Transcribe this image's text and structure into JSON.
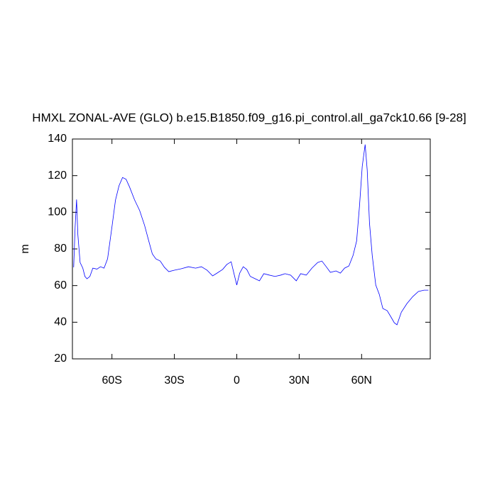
{
  "chart_data": {
    "type": "line",
    "title": "HMXL ZONAL-AVE (GLO) b.e15.B1850.f09_g16.pi_control.all_ga7ck10.66 [9-28]",
    "ylabel": "m",
    "color": "#0000ff",
    "x": [
      -78.4,
      -77.7,
      -77,
      -76.4,
      -75.3,
      -74,
      -73,
      -72,
      -70.6,
      -69.2,
      -67.2,
      -65.5,
      -63.8,
      -62.1,
      -60,
      -58.3,
      -56.6,
      -54.9,
      -53.2,
      -51.5,
      -49.1,
      -46.7,
      -44.3,
      -42.3,
      -40.6,
      -38.9,
      -36.8,
      -34.8,
      -32.7,
      -30,
      -26.6,
      -23.2,
      -19.8,
      -17,
      -14.3,
      -11.6,
      -9.5,
      -6.8,
      -4.8,
      -2.7,
      -1.4,
      0,
      1.4,
      3.1,
      4.8,
      6.5,
      8.9,
      10.9,
      13,
      15.7,
      18.4,
      21.1,
      23.2,
      25.9,
      28.6,
      30.7,
      33.4,
      36.1,
      38.9,
      40.9,
      43,
      45,
      47.7,
      49.8,
      51.8,
      53.9,
      55.9,
      57.6,
      59,
      60.3,
      61.7,
      62.7,
      63.8,
      65.1,
      66.8,
      68.5,
      70.2,
      72.3,
      74.3,
      75.7,
      77,
      79.1,
      81.8,
      84.6,
      87.3,
      90,
      92.1
    ],
    "values": [
      70,
      92,
      107,
      88,
      72.6,
      69.5,
      65,
      63.7,
      65,
      69.5,
      69,
      70.3,
      69.5,
      74.6,
      92,
      106.7,
      114.5,
      119,
      118,
      113.7,
      106.7,
      101,
      92.8,
      84.3,
      77.3,
      74.6,
      73.4,
      70,
      67.6,
      68.4,
      69.2,
      70.3,
      69.5,
      70.3,
      68.4,
      65.3,
      66.8,
      68.8,
      71.5,
      73,
      66.8,
      60.3,
      66.8,
      70.3,
      68.8,
      65,
      63.7,
      62.6,
      66.5,
      65.7,
      65,
      65.7,
      66.5,
      65.7,
      62.6,
      66.5,
      65.7,
      69.5,
      72.6,
      73.4,
      70.3,
      67.2,
      68,
      66.8,
      69.5,
      70.7,
      76.5,
      84.3,
      103.6,
      125,
      137,
      123,
      94,
      76.5,
      60.3,
      55.2,
      47.5,
      46.3,
      42.5,
      39.7,
      38.6,
      45.5,
      50.2,
      54,
      56.8,
      57.5,
      57.5
    ],
    "xlim": [
      -79,
      93
    ],
    "xticks": [
      {
        "value": -60,
        "label": "60S"
      },
      {
        "value": -30,
        "label": "30S"
      },
      0,
      {
        "value": 30,
        "label": "30N"
      },
      {
        "value": 60,
        "label": "60N"
      }
    ],
    "ylim": [
      20,
      140
    ],
    "yticks": [
      20,
      40,
      60,
      80,
      100,
      120,
      140
    ]
  }
}
